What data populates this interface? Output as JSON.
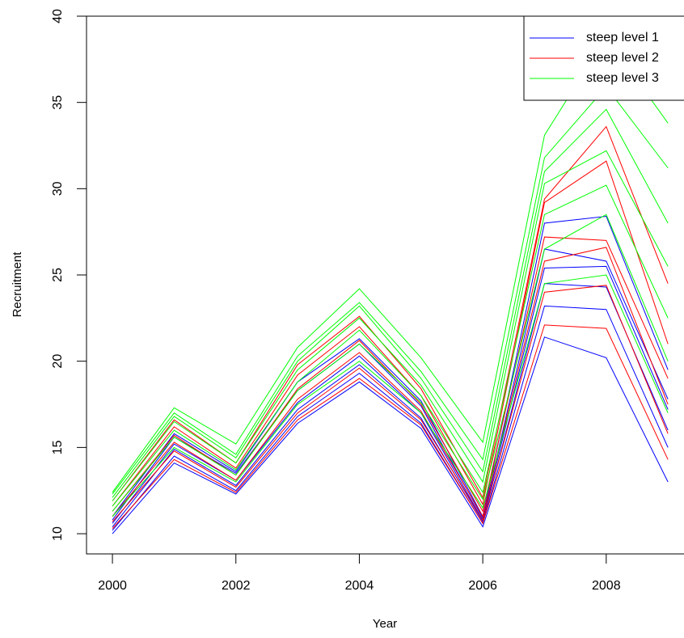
{
  "chart_data": {
    "type": "line",
    "xlabel": "Year",
    "ylabel": "Recruitment",
    "x": [
      2000,
      2001,
      2002,
      2003,
      2004,
      2005,
      2006,
      2007,
      2008,
      2009
    ],
    "xlim": [
      1999.58,
      2009.26
    ],
    "ylim": [
      8.83,
      40
    ],
    "xticks": [
      2000,
      2002,
      2004,
      2006,
      2008
    ],
    "yticks": [
      10,
      15,
      20,
      25,
      30,
      35,
      40
    ],
    "legend_position": "top-right",
    "series": [
      {
        "name": "steep level 1",
        "color": "#0000ff",
        "lines": [
          [
            10.0,
            14.1,
            12.3,
            16.4,
            18.8,
            16.1,
            10.4,
            21.4,
            20.2,
            13.0
          ],
          [
            10.2,
            14.5,
            12.5,
            16.8,
            19.3,
            16.4,
            10.6,
            23.2,
            23.0,
            15.0
          ],
          [
            10.4,
            14.9,
            12.8,
            17.2,
            19.8,
            16.7,
            10.7,
            24.5,
            24.3,
            16.0
          ],
          [
            10.6,
            15.2,
            13.1,
            17.6,
            20.3,
            17.0,
            10.8,
            25.4,
            25.5,
            17.2
          ],
          [
            10.8,
            15.6,
            13.5,
            18.3,
            21.0,
            17.4,
            10.9,
            26.5,
            25.8,
            17.8
          ],
          [
            11.0,
            15.8,
            13.6,
            18.8,
            21.3,
            17.7,
            11.0,
            28.0,
            28.4,
            19.5
          ]
        ]
      },
      {
        "name": "steep level 2",
        "color": "#ff0000",
        "lines": [
          [
            10.3,
            14.3,
            12.4,
            16.6,
            19.0,
            16.3,
            10.6,
            22.1,
            21.9,
            14.3
          ],
          [
            10.7,
            14.8,
            12.7,
            17.0,
            19.6,
            16.6,
            10.8,
            24.0,
            24.4,
            15.8
          ],
          [
            11.0,
            15.3,
            13.1,
            17.8,
            20.5,
            17.1,
            11.0,
            25.8,
            26.6,
            17.5
          ],
          [
            11.3,
            15.7,
            13.4,
            18.4,
            21.2,
            17.5,
            11.3,
            27.2,
            27.0,
            19.0
          ],
          [
            11.6,
            16.2,
            13.8,
            19.2,
            22.0,
            18.0,
            11.7,
            29.2,
            31.6,
            21.0
          ],
          [
            11.9,
            16.6,
            14.1,
            19.8,
            22.6,
            18.4,
            12.1,
            29.4,
            33.6,
            24.5
          ]
        ]
      },
      {
        "name": "steep level 3",
        "color": "#00ff00",
        "lines": [
          [
            11.0,
            15.0,
            13.0,
            17.5,
            20.0,
            17.0,
            11.5,
            24.5,
            25.0,
            17.0
          ],
          [
            11.3,
            15.6,
            13.4,
            18.3,
            21.0,
            17.6,
            12.0,
            26.5,
            28.5,
            20.0
          ],
          [
            11.6,
            16.0,
            13.7,
            18.8,
            21.8,
            18.0,
            12.4,
            28.5,
            30.2,
            22.5
          ],
          [
            11.9,
            16.5,
            14.1,
            19.5,
            22.5,
            18.6,
            13.0,
            30.3,
            32.2,
            25.5
          ],
          [
            12.1,
            16.8,
            14.4,
            20.0,
            23.2,
            19.0,
            13.6,
            31.0,
            34.6,
            28.0
          ],
          [
            12.3,
            17.0,
            14.6,
            20.3,
            23.4,
            19.4,
            14.3,
            31.8,
            35.9,
            31.2
          ],
          [
            12.4,
            17.3,
            15.2,
            20.8,
            24.2,
            20.2,
            15.3,
            33.1,
            38.8,
            33.8
          ]
        ]
      }
    ]
  }
}
